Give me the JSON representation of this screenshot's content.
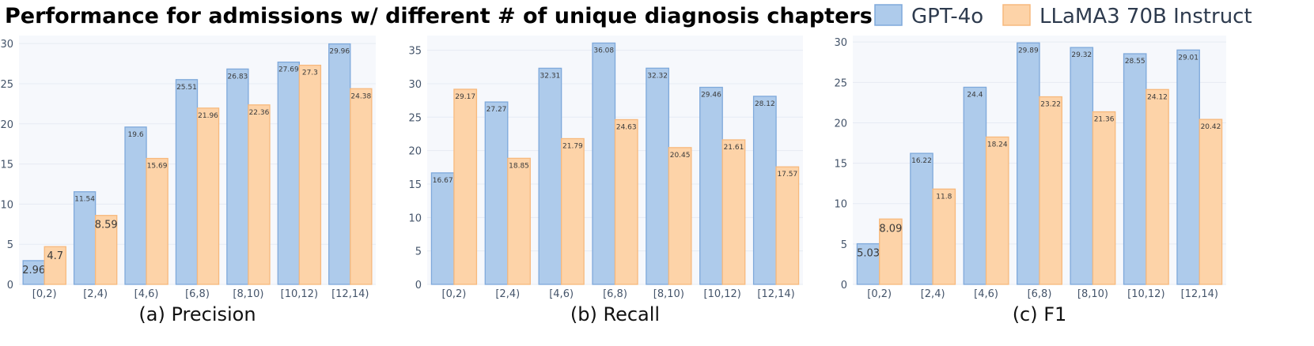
{
  "figure": {
    "title": "Performance for admissions w/ different # of unique diagnosis chapters"
  },
  "legend": [
    {
      "label": "GPT-4o",
      "fill": "#aecbeb",
      "stroke": "#7fa9db"
    },
    {
      "label": "LLaMA3 70B Instruct",
      "fill": "#fdd3a8",
      "stroke": "#f7b97d"
    }
  ],
  "colors": {
    "plot_bg": "#f6f8fc",
    "grid": "#ffffff",
    "text": "#44546a"
  },
  "chart_data": [
    {
      "type": "bar",
      "caption": "(a) Precision",
      "categories": [
        "[0,2)",
        "[2,4)",
        "[4,6)",
        "[6,8)",
        "[8,10)",
        "[10,12)",
        "[12,14)"
      ],
      "ylim": [
        0,
        31
      ],
      "yticks": [
        0,
        5,
        10,
        15,
        20,
        25,
        30
      ],
      "grid": true,
      "series": [
        {
          "name": "GPT-4o",
          "values": [
            2.96,
            11.54,
            19.6,
            25.51,
            26.83,
            27.69,
            29.96
          ],
          "labels": [
            "2.96",
            "11.54",
            "19.6",
            "25.51",
            "26.83",
            "27.69",
            "29.96"
          ]
        },
        {
          "name": "LLaMA3 70B Instruct",
          "values": [
            4.7,
            8.59,
            15.69,
            21.96,
            22.36,
            27.3,
            24.38
          ],
          "labels": [
            "4.7",
            "8.59",
            "15.69",
            "21.96",
            "22.36",
            "27.3",
            "24.38"
          ]
        }
      ]
    },
    {
      "type": "bar",
      "caption": "(b) Recall",
      "categories": [
        "[0,2)",
        "[2,4)",
        "[4,6)",
        "[6,8)",
        "[8,10)",
        "[10,12)",
        "[12,14)"
      ],
      "ylim": [
        0,
        37.2
      ],
      "yticks": [
        0,
        5,
        10,
        15,
        20,
        25,
        30,
        35
      ],
      "grid": true,
      "series": [
        {
          "name": "GPT-4o",
          "values": [
            16.67,
            27.27,
            32.31,
            36.08,
            32.32,
            29.46,
            28.12
          ],
          "labels": [
            "16.67",
            "27.27",
            "32.31",
            "36.08",
            "32.32",
            "29.46",
            "28.12"
          ]
        },
        {
          "name": "LLaMA3 70B Instruct",
          "values": [
            29.17,
            18.85,
            21.79,
            24.63,
            20.45,
            21.61,
            17.57
          ],
          "labels": [
            "29.17",
            "18.85",
            "21.79",
            "24.63",
            "20.45",
            "21.61",
            "17.57"
          ]
        }
      ]
    },
    {
      "type": "bar",
      "caption": "(c) F1",
      "categories": [
        "[0,2)",
        "[2,4)",
        "[4,6)",
        "[6,8)",
        "[8,10)",
        "[10,12)",
        "[12,14)"
      ],
      "ylim": [
        0,
        30.8
      ],
      "yticks": [
        0,
        5,
        10,
        15,
        20,
        25,
        30
      ],
      "grid": true,
      "series": [
        {
          "name": "GPT-4o",
          "values": [
            5.03,
            16.22,
            24.4,
            29.89,
            29.32,
            28.55,
            29.01
          ],
          "labels": [
            "5.03",
            "16.22",
            "24.4",
            "29.89",
            "29.32",
            "28.55",
            "29.01"
          ]
        },
        {
          "name": "LLaMA3 70B Instruct",
          "values": [
            8.09,
            11.8,
            18.24,
            23.22,
            21.36,
            24.12,
            20.42
          ],
          "labels": [
            "8.09",
            "11.8",
            "18.24",
            "23.22",
            "21.36",
            "24.12",
            "20.42"
          ]
        }
      ]
    }
  ]
}
